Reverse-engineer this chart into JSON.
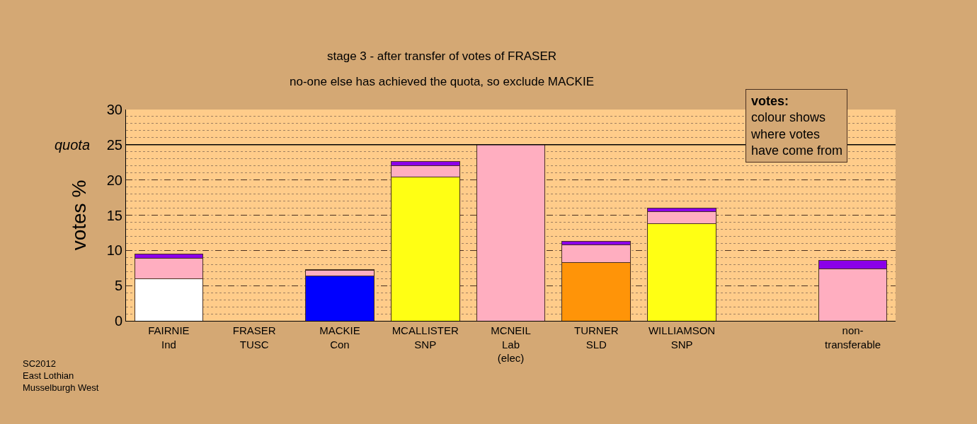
{
  "chart_data": {
    "type": "bar",
    "title": "stage 3 - after transfer of votes of FRASER",
    "subtitle": "no-one else has achieved the quota, so exclude MACKIE",
    "ylabel": "votes %",
    "categories": [
      "FAIRNIE\nInd",
      "FRASER\nTUSC",
      "MACKIE\nCon",
      "MCALLISTER\nSNP",
      "MCNEIL\nLab\n(elec)",
      "TURNER\nSLD",
      "WILLIAMSON\nSNP",
      null,
      "non-\ntransferable"
    ],
    "stacked": true,
    "series": [
      {
        "colors": [
          "#ffffff",
          "#ffffff",
          "#0000ff",
          "#ffff14",
          "#ffaec0",
          "#ff9408",
          "#ffff14",
          "#ffffff",
          "#ffaec0"
        ],
        "values": [
          6.0,
          null,
          6.4,
          20.4,
          25.0,
          8.3,
          13.8,
          null,
          null
        ]
      },
      {
        "color": "#ffaec0",
        "values": [
          2.9,
          null,
          0.8,
          1.6,
          null,
          2.5,
          1.7,
          null,
          7.4
        ]
      },
      {
        "color": "#8b00e8",
        "values": [
          0.6,
          null,
          0.1,
          0.6,
          null,
          0.5,
          0.5,
          null,
          1.2
        ]
      }
    ],
    "ylim": [
      0,
      30
    ],
    "yticks": [
      0,
      5,
      10,
      15,
      20,
      25,
      30
    ],
    "grid": "y",
    "ref_lines": [
      {
        "axis": "y",
        "value": 25,
        "label": "quota",
        "color": "#000000",
        "line_style": "solid"
      }
    ],
    "annotations": [
      "votes:\ncolour shows\nwhere votes\nhave come from",
      "SC2012\nEast Lothian\nMusselburgh West"
    ]
  }
}
